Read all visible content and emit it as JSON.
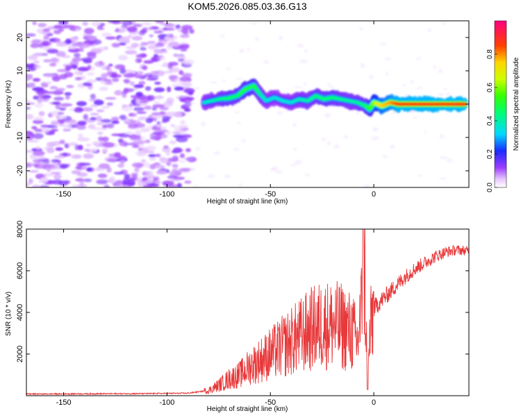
{
  "title": "KOM5.2026.085.03.36.G13",
  "chart_data": [
    {
      "type": "heatmap",
      "xlabel": "Height of straight line (km)",
      "ylabel": "Frequency (Hz)",
      "xlim": [
        -168,
        46
      ],
      "ylim": [
        -25,
        25
      ],
      "xticks": [
        -150,
        -100,
        -50,
        0
      ],
      "yticks": [
        -20,
        -10,
        0,
        10,
        20
      ],
      "colorbar": {
        "label": "Normalized spectral amplitude",
        "range": [
          0,
          1
        ],
        "ticks": [
          0.0,
          0.2,
          0.4,
          0.6,
          0.8
        ],
        "tick_labels": [
          "0.0",
          "0.2",
          "0.4",
          "0.6",
          "0.8"
        ]
      },
      "ridge": {
        "x": [
          -82,
          -75,
          -70,
          -66,
          -62,
          -58,
          -55,
          -52,
          -48,
          -44,
          -40,
          -36,
          -32,
          -28,
          -24,
          -20,
          -16,
          -12,
          -8,
          -4,
          -2,
          0,
          4,
          8,
          12,
          20,
          30,
          40,
          44
        ],
        "freq": [
          0.5,
          1.5,
          1.8,
          2.5,
          4.5,
          5.5,
          3.0,
          1.0,
          2.0,
          1.0,
          0.5,
          1.5,
          1.0,
          2.5,
          1.5,
          2.0,
          1.5,
          1.0,
          0.5,
          -0.5,
          -1.5,
          0.5,
          -0.5,
          0.5,
          0.0,
          0.0,
          0.0,
          0.0,
          0.0
        ],
        "amplitude": [
          0.35,
          0.4,
          0.45,
          0.45,
          0.5,
          0.5,
          0.4,
          0.35,
          0.35,
          0.35,
          0.35,
          0.38,
          0.4,
          0.42,
          0.45,
          0.45,
          0.42,
          0.4,
          0.4,
          0.45,
          0.5,
          0.6,
          0.75,
          0.78,
          0.85,
          0.85,
          0.85,
          0.86,
          0.86
        ]
      }
    },
    {
      "type": "line",
      "xlabel": "Height of straight line (km)",
      "ylabel": "SNR (10 * v/v)",
      "xlim": [
        -168,
        46
      ],
      "ylim": [
        0,
        8000
      ],
      "xticks": [
        -150,
        -100,
        -50,
        0
      ],
      "yticks": [
        2000,
        4000,
        6000,
        8000
      ],
      "color": "#e8383a",
      "series": [
        {
          "name": "SNR",
          "x": [
            -168,
            -140,
            -110,
            -90,
            -80,
            -75,
            -70,
            -65,
            -60,
            -55,
            -50,
            -45,
            -40,
            -35,
            -30,
            -25,
            -20,
            -15,
            -10,
            -8,
            -6,
            -5,
            -4,
            -3,
            -2,
            0,
            5,
            10,
            15,
            20,
            25,
            30,
            35,
            40,
            46
          ],
          "y": [
            80,
            90,
            100,
            120,
            250,
            500,
            800,
            1000,
            1400,
            1700,
            2000,
            2300,
            2600,
            2900,
            3200,
            3400,
            3400,
            3300,
            3000,
            2500,
            4000,
            8000,
            4500,
            400,
            2800,
            4200,
            4700,
            5200,
            5700,
            6100,
            6400,
            6700,
            6900,
            7000,
            6950
          ]
        }
      ]
    }
  ]
}
